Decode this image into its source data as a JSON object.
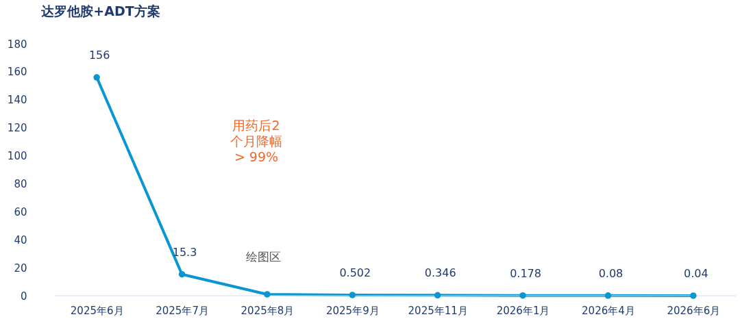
{
  "chart_data": {
    "type": "line",
    "title": "达罗他胺+ADT方案",
    "categories": [
      "2025年6月",
      "2025年7月",
      "2025年8月",
      "2025年9月",
      "2025年11月",
      "2026年1月",
      "2026年4月",
      "2026年6月"
    ],
    "series": [
      {
        "color": "#0a96d2",
        "values": [
          156,
          15.3,
          1,
          0.502,
          0.346,
          0.178,
          0.08,
          0.04
        ],
        "value_labels": [
          "156",
          "15.3",
          null,
          "0.502",
          "0.346",
          "0.178",
          "0.08",
          "0.04"
        ]
      }
    ],
    "ylim": [
      0,
      180
    ],
    "yticks": [
      0,
      20,
      40,
      60,
      80,
      100,
      120,
      140,
      160,
      180
    ],
    "grid": false,
    "marker": "circle",
    "line_style": "solid",
    "annotations": [
      "用药后2\n个月降幅\n> 99%",
      "绘图区"
    ]
  }
}
